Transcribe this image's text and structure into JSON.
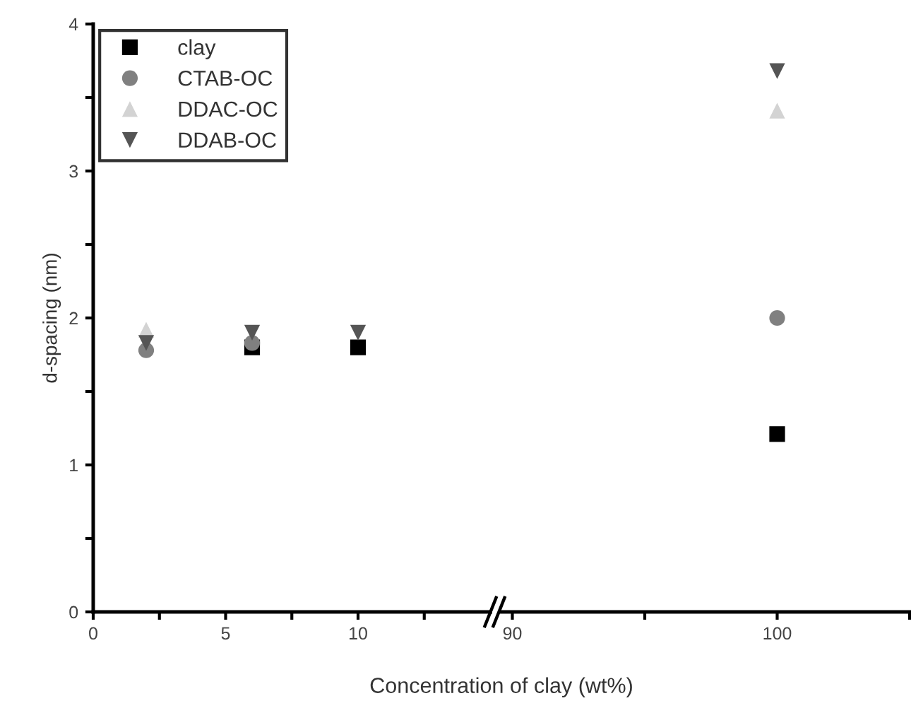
{
  "chart_data": [
    {
      "type": "scatter",
      "xlabel": "Concentration of clay (wt%)",
      "ylabel": "d-spacing (nm)",
      "x": [
        2,
        6,
        10
      ],
      "xlim": [
        0,
        15
      ],
      "xticks": [
        0,
        {
          "value": 2.5,
          "label": null
        },
        5,
        {
          "value": 7.5,
          "label": null
        },
        10,
        {
          "value": 12.5,
          "label": null
        }
      ],
      "ylim": [
        0,
        4
      ],
      "yticks": [
        0,
        {
          "value": 0.5,
          "label": null
        },
        1,
        {
          "value": 1.5,
          "label": null
        },
        2,
        {
          "value": 2.5,
          "label": null
        },
        3,
        {
          "value": 3.5,
          "label": null
        },
        4
      ],
      "grid": false,
      "legend": "top left",
      "series": [
        {
          "name": "clay",
          "color": "#000000",
          "marker": "square",
          "values": [
            null,
            1.8,
            1.8
          ]
        },
        {
          "name": "CTAB-OC",
          "color": "#808080",
          "marker": "circle",
          "values": [
            1.78,
            1.83,
            null
          ]
        },
        {
          "name": "DDAC-OC",
          "color": "#d3d3d3",
          "marker": "triangle",
          "values": [
            1.92,
            null,
            null
          ]
        },
        {
          "name": "DDAB-OC",
          "color": "#555555",
          "marker": "triangle_down",
          "values": [
            1.83,
            1.9,
            1.9
          ]
        }
      ]
    },
    {
      "type": "scatter",
      "x": [
        100
      ],
      "xlim": [
        89.6,
        105
      ],
      "xticks": [
        90,
        {
          "value": 95,
          "label": null
        },
        100,
        {
          "value": 105,
          "label": null
        }
      ],
      "ylim": [
        0,
        4
      ],
      "tick_labels": "x",
      "grid": false,
      "series": [
        {
          "color": "#000000",
          "marker": "square",
          "values": [
            1.21
          ]
        },
        {
          "color": "#808080",
          "marker": "circle",
          "values": [
            2.0
          ]
        },
        {
          "color": "#d3d3d3",
          "marker": "triangle",
          "values": [
            3.41
          ]
        },
        {
          "color": "#555555",
          "marker": "triangle_down",
          "values": [
            3.68
          ]
        }
      ]
    }
  ]
}
